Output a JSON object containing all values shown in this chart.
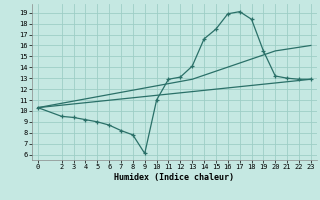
{
  "bg_color": "#c5e8e2",
  "line_color": "#2a7068",
  "grid_color": "#9ecec6",
  "xlabel": "Humidex (Indice chaleur)",
  "xlim": [
    -0.5,
    23.5
  ],
  "ylim": [
    5.5,
    19.8
  ],
  "yticks": [
    6,
    7,
    8,
    9,
    10,
    11,
    12,
    13,
    14,
    15,
    16,
    17,
    18,
    19
  ],
  "xticks": [
    0,
    2,
    3,
    4,
    5,
    6,
    7,
    8,
    9,
    10,
    11,
    12,
    13,
    14,
    15,
    16,
    17,
    18,
    19,
    20,
    21,
    22,
    23
  ],
  "curve1_x": [
    0,
    2,
    3,
    4,
    5,
    6,
    7,
    8,
    9,
    10,
    11,
    12,
    13,
    14,
    15,
    16,
    17,
    18,
    19,
    20,
    21,
    22,
    23
  ],
  "curve1_y": [
    10.3,
    9.5,
    9.4,
    9.2,
    9.0,
    8.7,
    8.2,
    7.8,
    6.1,
    11.0,
    12.9,
    13.1,
    14.1,
    16.6,
    17.5,
    18.9,
    19.1,
    18.4,
    15.5,
    13.2,
    13.0,
    12.9,
    12.9
  ],
  "curve2_x": [
    0,
    23
  ],
  "curve2_y": [
    10.3,
    12.9
  ],
  "curve3_x": [
    0,
    13,
    20,
    23
  ],
  "curve3_y": [
    10.3,
    12.9,
    15.5,
    16.0
  ]
}
